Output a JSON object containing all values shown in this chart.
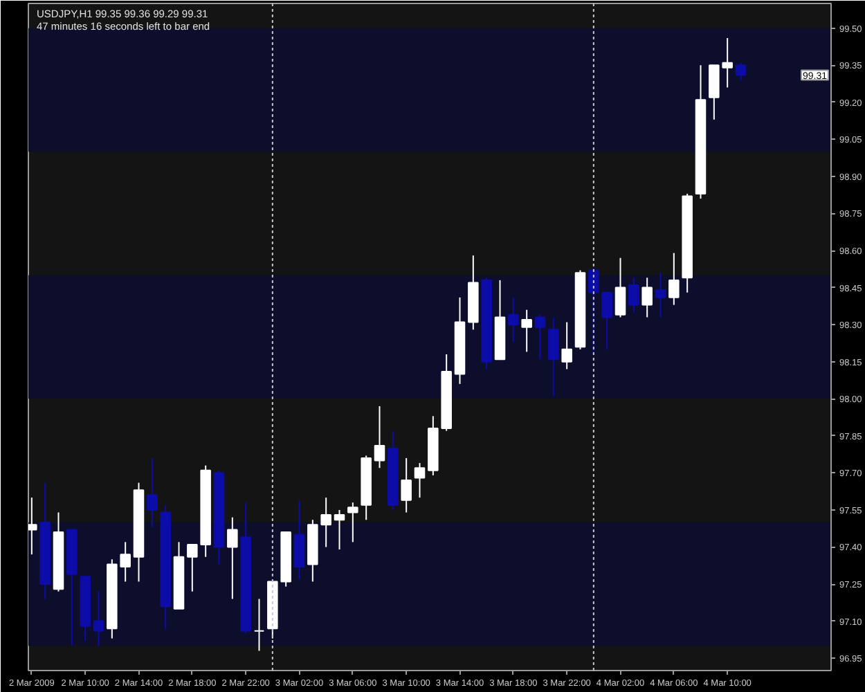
{
  "chart_data": {
    "type": "candlestick",
    "title": "USDJPY,H1 99.35 99.36 99.29 99.31",
    "subtitle": "47 minutes 16 seconds left to bar end",
    "x": [
      "2009-03-02T06:00",
      "2009-03-02T07:00",
      "2009-03-02T08:00",
      "2009-03-02T09:00",
      "2009-03-02T10:00",
      "2009-03-02T11:00",
      "2009-03-02T12:00",
      "2009-03-02T13:00",
      "2009-03-02T14:00",
      "2009-03-02T15:00",
      "2009-03-02T16:00",
      "2009-03-02T17:00",
      "2009-03-02T18:00",
      "2009-03-02T19:00",
      "2009-03-02T20:00",
      "2009-03-02T21:00",
      "2009-03-02T22:00",
      "2009-03-02T23:00",
      "2009-03-03T00:00",
      "2009-03-03T01:00",
      "2009-03-03T02:00",
      "2009-03-03T03:00",
      "2009-03-03T04:00",
      "2009-03-03T05:00",
      "2009-03-03T06:00",
      "2009-03-03T07:00",
      "2009-03-03T08:00",
      "2009-03-03T09:00",
      "2009-03-03T10:00",
      "2009-03-03T11:00",
      "2009-03-03T12:00",
      "2009-03-03T13:00",
      "2009-03-03T14:00",
      "2009-03-03T15:00",
      "2009-03-03T16:00",
      "2009-03-03T17:00",
      "2009-03-03T18:00",
      "2009-03-03T19:00",
      "2009-03-03T20:00",
      "2009-03-03T21:00",
      "2009-03-03T22:00",
      "2009-03-03T23:00",
      "2009-03-04T00:00",
      "2009-03-04T01:00",
      "2009-03-04T02:00",
      "2009-03-04T03:00",
      "2009-03-04T04:00",
      "2009-03-04T05:00",
      "2009-03-04T06:00",
      "2009-03-04T07:00",
      "2009-03-04T08:00",
      "2009-03-04T09:00",
      "2009-03-04T10:00",
      "2009-03-04T11:00"
    ],
    "ohlc": [
      [
        97.47,
        97.6,
        97.37,
        97.49
      ],
      [
        97.5,
        97.66,
        97.19,
        97.25
      ],
      [
        97.23,
        97.54,
        97.22,
        97.46
      ],
      [
        97.47,
        97.47,
        97.0,
        97.29
      ],
      [
        97.28,
        97.28,
        97.02,
        97.08
      ],
      [
        97.1,
        97.22,
        97.0,
        97.06
      ],
      [
        97.07,
        97.35,
        97.03,
        97.33
      ],
      [
        97.32,
        97.42,
        97.26,
        97.37
      ],
      [
        97.36,
        97.66,
        97.26,
        97.63
      ],
      [
        97.61,
        97.76,
        97.48,
        97.55
      ],
      [
        97.54,
        97.57,
        97.07,
        97.16
      ],
      [
        97.15,
        97.42,
        97.15,
        97.36
      ],
      [
        97.36,
        97.41,
        97.22,
        97.41
      ],
      [
        97.41,
        97.73,
        97.36,
        97.71
      ],
      [
        97.7,
        97.71,
        97.33,
        97.4
      ],
      [
        97.4,
        97.52,
        97.19,
        97.47
      ],
      [
        97.44,
        97.58,
        97.05,
        97.06
      ],
      [
        97.06,
        97.19,
        96.98,
        97.06
      ],
      [
        97.07,
        97.26,
        97.03,
        97.26
      ],
      [
        97.26,
        97.46,
        97.24,
        97.46
      ],
      [
        97.45,
        97.59,
        97.27,
        97.32
      ],
      [
        97.33,
        97.51,
        97.26,
        97.49
      ],
      [
        97.49,
        97.6,
        97.4,
        97.53
      ],
      [
        97.51,
        97.55,
        97.39,
        97.53
      ],
      [
        97.54,
        97.58,
        97.42,
        97.56
      ],
      [
        97.57,
        97.77,
        97.51,
        97.76
      ],
      [
        97.75,
        97.97,
        97.72,
        97.81
      ],
      [
        97.8,
        97.87,
        97.55,
        97.57
      ],
      [
        97.59,
        97.76,
        97.54,
        97.67
      ],
      [
        97.68,
        97.74,
        97.6,
        97.72
      ],
      [
        97.71,
        97.93,
        97.69,
        97.88
      ],
      [
        97.88,
        98.18,
        97.87,
        98.11
      ],
      [
        98.1,
        98.41,
        98.06,
        98.31
      ],
      [
        98.31,
        98.58,
        98.28,
        98.47
      ],
      [
        98.48,
        98.49,
        98.12,
        98.15
      ],
      [
        98.16,
        98.48,
        98.16,
        98.33
      ],
      [
        98.34,
        98.41,
        98.23,
        98.3
      ],
      [
        98.29,
        98.36,
        98.19,
        98.32
      ],
      [
        98.33,
        98.34,
        98.16,
        98.29
      ],
      [
        98.28,
        98.33,
        98.01,
        98.16
      ],
      [
        98.15,
        98.31,
        98.12,
        98.2
      ],
      [
        98.21,
        98.52,
        98.2,
        98.51
      ],
      [
        98.52,
        98.53,
        98.18,
        98.43
      ],
      [
        98.43,
        98.43,
        98.2,
        98.33
      ],
      [
        98.34,
        98.57,
        98.33,
        98.45
      ],
      [
        98.46,
        98.49,
        98.35,
        98.38
      ],
      [
        98.38,
        98.49,
        98.33,
        98.45
      ],
      [
        98.44,
        98.51,
        98.33,
        98.41
      ],
      [
        98.41,
        98.59,
        98.38,
        98.48
      ],
      [
        98.49,
        98.83,
        98.43,
        98.82
      ],
      [
        98.83,
        99.35,
        98.81,
        99.21
      ],
      [
        99.22,
        99.35,
        99.13,
        99.35
      ],
      [
        99.34,
        99.46,
        99.26,
        99.36
      ],
      [
        99.35,
        99.36,
        99.29,
        99.31
      ]
    ],
    "colors": [
      "#ffffff",
      "#0c0ca8",
      "#ffffff",
      "#0c0ca8",
      "#0c0ca8",
      "#0c0ca8",
      "#ffffff",
      "#ffffff",
      "#ffffff",
      "#0c0ca8",
      "#0c0ca8",
      "#ffffff",
      "#ffffff",
      "#ffffff",
      "#0c0ca8",
      "#ffffff",
      "#0c0ca8",
      "#ffffff",
      "#ffffff",
      "#ffffff",
      "#0c0ca8",
      "#ffffff",
      "#ffffff",
      "#ffffff",
      "#ffffff",
      "#ffffff",
      "#ffffff",
      "#0c0ca8",
      "#ffffff",
      "#ffffff",
      "#ffffff",
      "#ffffff",
      "#ffffff",
      "#ffffff",
      "#0c0ca8",
      "#ffffff",
      "#0c0ca8",
      "#ffffff",
      "#0c0ca8",
      "#0c0ca8",
      "#ffffff",
      "#ffffff",
      "#0c0ca8",
      "#0c0ca8",
      "#ffffff",
      "#0c0ca8",
      "#ffffff",
      "#0c0ca8",
      "#ffffff",
      "#ffffff",
      "#ffffff",
      "#ffffff",
      "#ffffff",
      "#0c0ca8"
    ],
    "xlim": [
      "2009-03-02T05:45",
      "2009-03-04T17:45"
    ],
    "xticks": [
      {
        "value": "2009-03-02T06:00",
        "label": "2 Mar 2009"
      },
      {
        "value": "2009-03-02T10:00",
        "label": "2 Mar 10:00"
      },
      {
        "value": "2009-03-02T14:00",
        "label": "2 Mar 14:00"
      },
      {
        "value": "2009-03-02T18:00",
        "label": "2 Mar 18:00"
      },
      {
        "value": "2009-03-02T22:00",
        "label": "2 Mar 22:00"
      },
      {
        "value": "2009-03-03T02:00",
        "label": "3 Mar 02:00"
      },
      {
        "value": "2009-03-03T06:00",
        "label": "3 Mar 06:00"
      },
      {
        "value": "2009-03-03T10:00",
        "label": "3 Mar 10:00"
      },
      {
        "value": "2009-03-03T14:00",
        "label": "3 Mar 14:00"
      },
      {
        "value": "2009-03-03T18:00",
        "label": "3 Mar 18:00"
      },
      {
        "value": "2009-03-03T22:00",
        "label": "3 Mar 22:00"
      },
      {
        "value": "2009-03-04T02:00",
        "label": "4 Mar 02:00"
      },
      {
        "value": "2009-03-04T06:00",
        "label": "4 Mar 06:00"
      },
      {
        "value": "2009-03-04T10:00",
        "label": "4 Mar 10:00"
      }
    ],
    "ylim": [
      96.9,
      99.6
    ],
    "yticks": [
      96.95,
      {
        "value": 97.1,
        "label": "97.10"
      },
      97.25,
      {
        "value": 97.4,
        "label": "97.40"
      },
      97.55,
      {
        "value": 97.7,
        "label": "97.70"
      },
      97.85,
      {
        "value": 98.0,
        "label": "98.00"
      },
      98.15,
      {
        "value": 98.3,
        "label": "98.30"
      },
      98.45,
      {
        "value": 98.6,
        "label": "98.60"
      },
      98.75,
      {
        "value": 98.9,
        "label": "98.90"
      },
      99.05,
      {
        "value": 99.2,
        "label": "99.20"
      },
      99.35,
      {
        "value": 99.5,
        "label": "99.50"
      }
    ],
    "ref_lines": [
      {
        "axis": "x",
        "value": "2009-03-03T00:00",
        "color": "#c8c8c8",
        "line_style": "dotted"
      },
      {
        "axis": "x",
        "value": "2009-03-04T00:00",
        "color": "#c8c8c8",
        "line_style": "dotted"
      }
    ],
    "bands": [
      {
        "axis": "y",
        "from": 97.0,
        "to": 97.5,
        "color": "#0c0e2c"
      },
      {
        "axis": "y",
        "from": 98.0,
        "to": 98.5,
        "color": "#0c0e2c"
      },
      {
        "axis": "y",
        "from": 99.0,
        "to": 99.5,
        "color": "#0c0e2c"
      }
    ],
    "annotations": [
      {
        "text": "99.31",
        "y": 99.31
      }
    ]
  }
}
